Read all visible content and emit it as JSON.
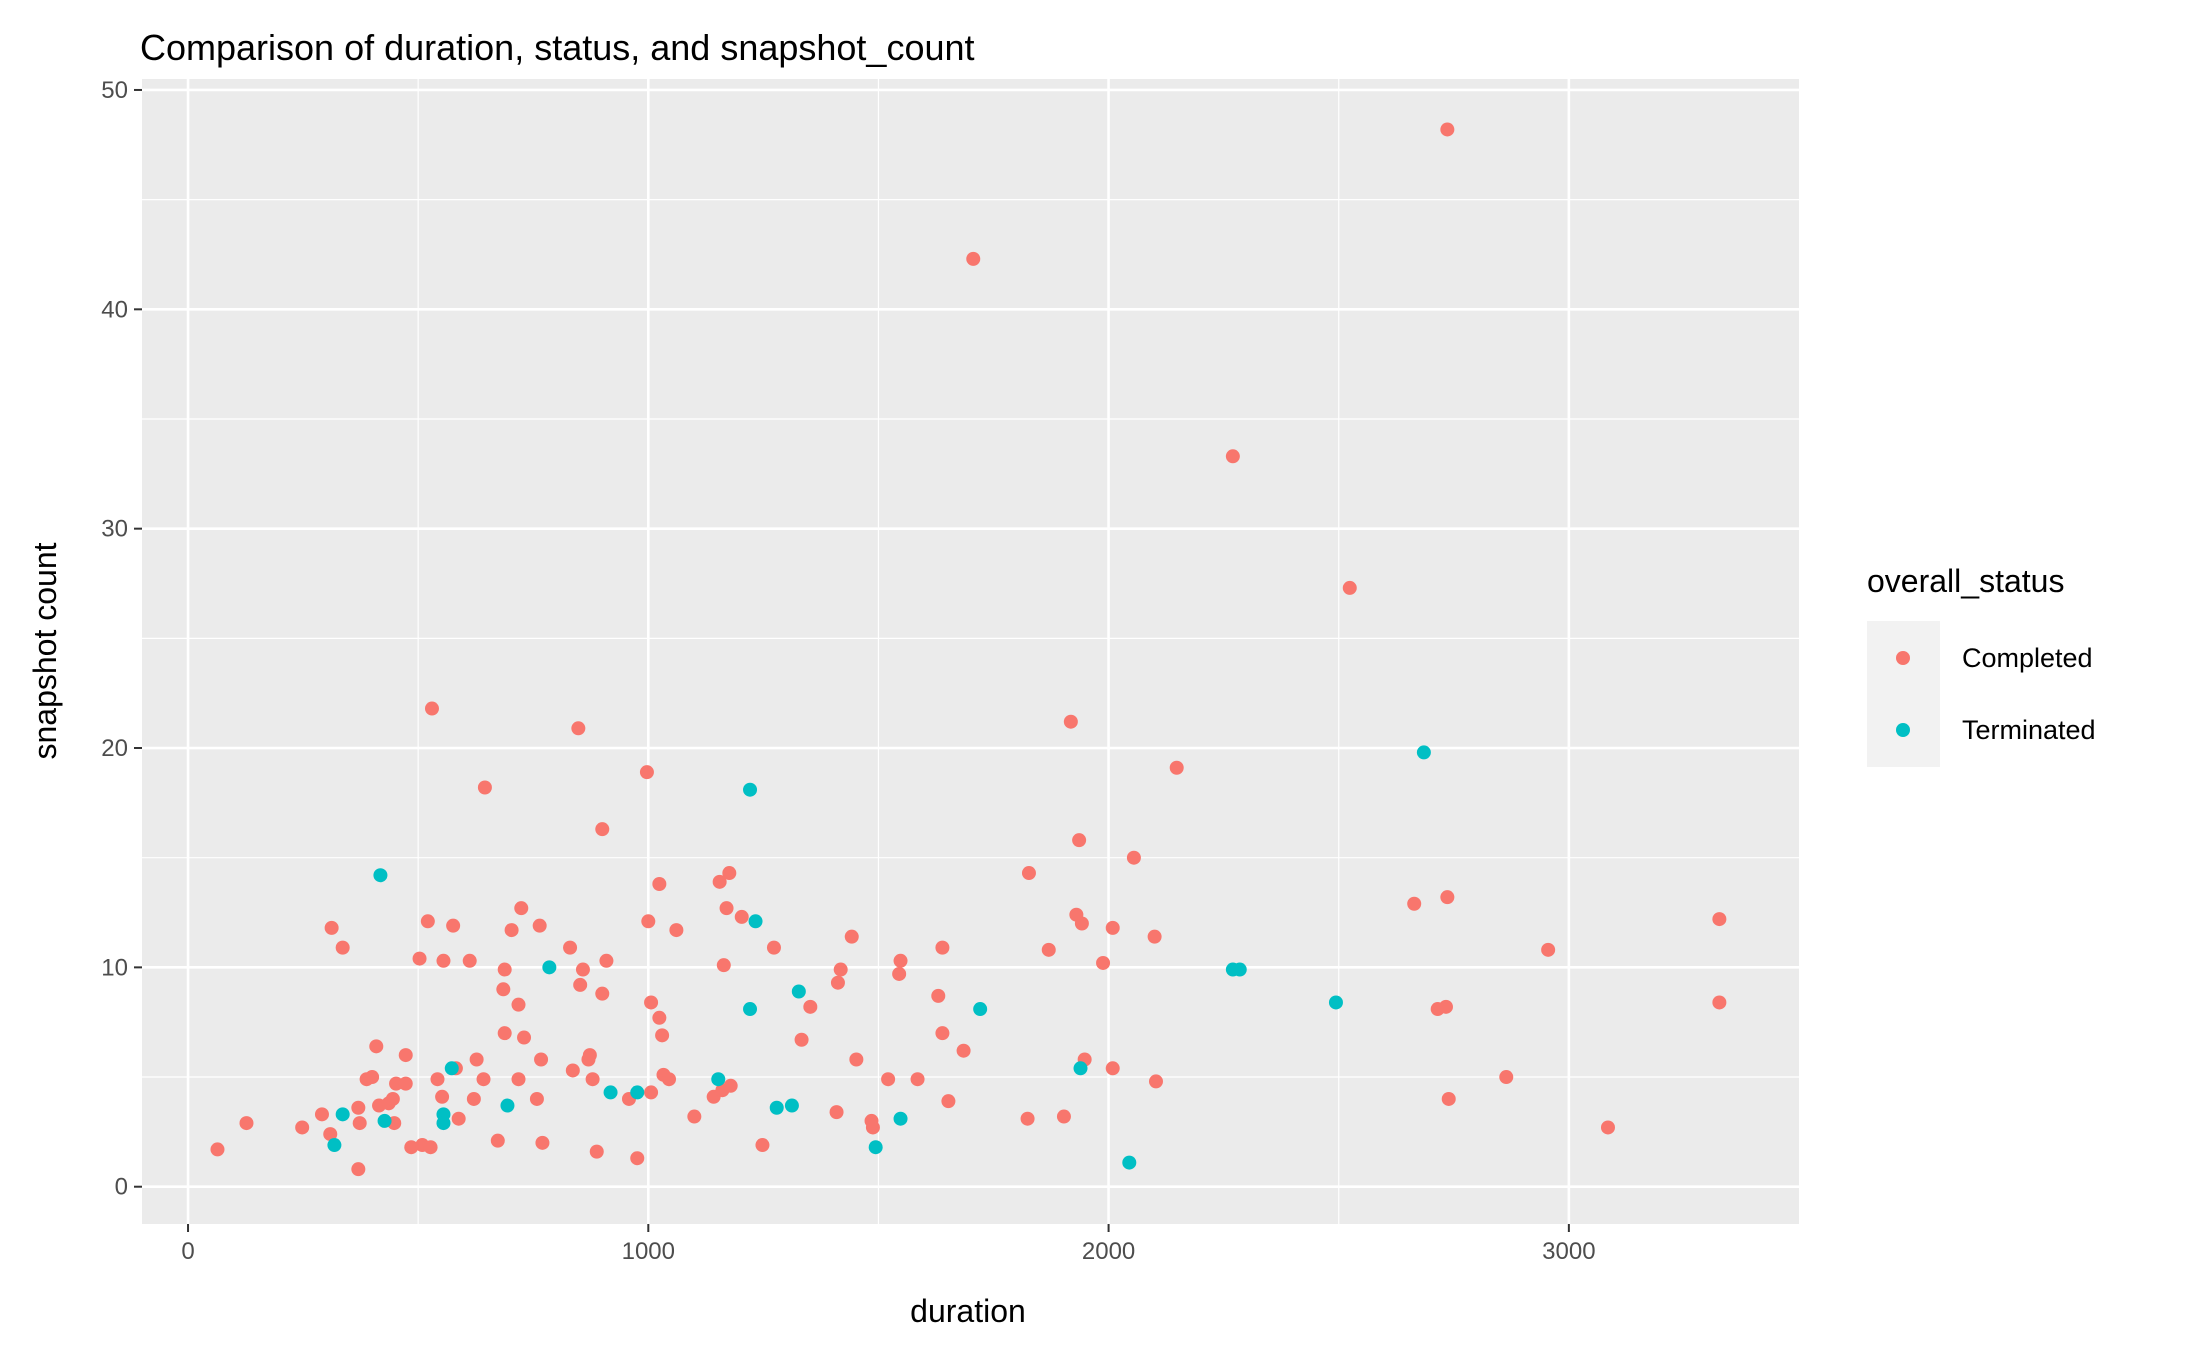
{
  "chart_data": {
    "type": "scatter",
    "title": "Comparison of duration, status, and snapshot_count",
    "xlabel": "duration",
    "ylabel": "snapshot count",
    "xlim": [
      -100,
      3500
    ],
    "ylim": [
      -1.7,
      50.5
    ],
    "xticks": [
      0,
      1000,
      2000,
      3000
    ],
    "yticks": [
      0,
      10,
      20,
      30,
      40,
      50
    ],
    "grid": true,
    "legend": {
      "title": "overall_status",
      "placement": "right"
    },
    "series": [
      {
        "name": "Completed",
        "color": "#F8766D",
        "points": [
          [
            64,
            1.7
          ],
          [
            127,
            2.9
          ],
          [
            248,
            2.7
          ],
          [
            291,
            3.3
          ],
          [
            309,
            2.4
          ],
          [
            312,
            11.8
          ],
          [
            336,
            10.9
          ],
          [
            370,
            0.8
          ],
          [
            370,
            3.6
          ],
          [
            373,
            2.9
          ],
          [
            388,
            4.9
          ],
          [
            400,
            5.0
          ],
          [
            409,
            6.4
          ],
          [
            415,
            3.7
          ],
          [
            436,
            3.8
          ],
          [
            445,
            4.0
          ],
          [
            448,
            2.9
          ],
          [
            452,
            4.7
          ],
          [
            473,
            4.7
          ],
          [
            473,
            6.0
          ],
          [
            485,
            1.8
          ],
          [
            503,
            10.4
          ],
          [
            509,
            1.9
          ],
          [
            521,
            12.1
          ],
          [
            527,
            1.8
          ],
          [
            530,
            21.8
          ],
          [
            542,
            4.9
          ],
          [
            552,
            4.1
          ],
          [
            555,
            10.3
          ],
          [
            576,
            11.9
          ],
          [
            582,
            5.4
          ],
          [
            588,
            3.1
          ],
          [
            612,
            10.3
          ],
          [
            621,
            4.0
          ],
          [
            627,
            5.8
          ],
          [
            642,
            4.9
          ],
          [
            645,
            18.2
          ],
          [
            673,
            2.1
          ],
          [
            685,
            9.0
          ],
          [
            688,
            9.9
          ],
          [
            688,
            7.0
          ],
          [
            703,
            11.7
          ],
          [
            718,
            8.3
          ],
          [
            718,
            4.9
          ],
          [
            724,
            12.7
          ],
          [
            730,
            6.8
          ],
          [
            758,
            4.0
          ],
          [
            764,
            11.9
          ],
          [
            767,
            5.8
          ],
          [
            770,
            2.0
          ],
          [
            830,
            10.9
          ],
          [
            836,
            5.3
          ],
          [
            848,
            20.9
          ],
          [
            852,
            9.2
          ],
          [
            858,
            9.9
          ],
          [
            870,
            5.8
          ],
          [
            873,
            6.0
          ],
          [
            879,
            4.9
          ],
          [
            888,
            1.6
          ],
          [
            900,
            16.3
          ],
          [
            900,
            8.8
          ],
          [
            909,
            10.3
          ],
          [
            958,
            4.0
          ],
          [
            976,
            1.3
          ],
          [
            997,
            18.9
          ],
          [
            1000,
            12.1
          ],
          [
            1006,
            8.4
          ],
          [
            1006,
            4.3
          ],
          [
            1024,
            13.8
          ],
          [
            1024,
            7.7
          ],
          [
            1030,
            6.9
          ],
          [
            1033,
            5.1
          ],
          [
            1045,
            4.9
          ],
          [
            1061,
            11.7
          ],
          [
            1100,
            3.2
          ],
          [
            1142,
            4.1
          ],
          [
            1155,
            13.9
          ],
          [
            1161,
            4.4
          ],
          [
            1164,
            10.1
          ],
          [
            1170,
            12.7
          ],
          [
            1176,
            14.3
          ],
          [
            1179,
            4.6
          ],
          [
            1203,
            12.3
          ],
          [
            1248,
            1.9
          ],
          [
            1273,
            10.9
          ],
          [
            1333,
            6.7
          ],
          [
            1352,
            8.2
          ],
          [
            1409,
            3.4
          ],
          [
            1412,
            9.3
          ],
          [
            1418,
            9.9
          ],
          [
            1442,
            11.4
          ],
          [
            1452,
            5.8
          ],
          [
            1485,
            3.0
          ],
          [
            1488,
            2.7
          ],
          [
            1521,
            4.9
          ],
          [
            1545,
            9.7
          ],
          [
            1548,
            10.3
          ],
          [
            1585,
            4.9
          ],
          [
            1630,
            8.7
          ],
          [
            1639,
            7.0
          ],
          [
            1639,
            10.9
          ],
          [
            1652,
            3.9
          ],
          [
            1685,
            6.2
          ],
          [
            1706,
            42.3
          ],
          [
            1824,
            3.1
          ],
          [
            1827,
            14.3
          ],
          [
            1870,
            10.8
          ],
          [
            1903,
            3.2
          ],
          [
            1918,
            21.2
          ],
          [
            1930,
            12.4
          ],
          [
            1936,
            15.8
          ],
          [
            1942,
            12.0
          ],
          [
            1948,
            5.8
          ],
          [
            1988,
            10.2
          ],
          [
            2009,
            11.8
          ],
          [
            2009,
            5.4
          ],
          [
            2055,
            15.0
          ],
          [
            2100,
            11.4
          ],
          [
            2103,
            4.8
          ],
          [
            2148,
            19.1
          ],
          [
            2270,
            33.3
          ],
          [
            2524,
            27.3
          ],
          [
            2664,
            12.9
          ],
          [
            2715,
            8.1
          ],
          [
            2733,
            8.2
          ],
          [
            2736,
            13.2
          ],
          [
            2736,
            48.2
          ],
          [
            2739,
            4.0
          ],
          [
            2864,
            5.0
          ],
          [
            2955,
            10.8
          ],
          [
            3085,
            2.7
          ],
          [
            3327,
            12.2
          ],
          [
            3327,
            8.4
          ]
        ]
      },
      {
        "name": "Terminated",
        "color": "#00BFC4",
        "points": [
          [
            318,
            1.9
          ],
          [
            336,
            3.3
          ],
          [
            418,
            14.2
          ],
          [
            427,
            3.0
          ],
          [
            555,
            3.3
          ],
          [
            555,
            2.9
          ],
          [
            573,
            5.4
          ],
          [
            694,
            3.7
          ],
          [
            785,
            10.0
          ],
          [
            918,
            4.3
          ],
          [
            976,
            4.3
          ],
          [
            1152,
            4.9
          ],
          [
            1221,
            18.1
          ],
          [
            1221,
            8.1
          ],
          [
            1233,
            12.1
          ],
          [
            1279,
            3.6
          ],
          [
            1312,
            3.7
          ],
          [
            1327,
            8.9
          ],
          [
            1494,
            1.8
          ],
          [
            1548,
            3.1
          ],
          [
            1721,
            8.1
          ],
          [
            1939,
            5.4
          ],
          [
            2045,
            1.1
          ],
          [
            2270,
            9.9
          ],
          [
            2285,
            9.9
          ],
          [
            2494,
            8.4
          ],
          [
            2685,
            19.8
          ]
        ]
      }
    ]
  }
}
